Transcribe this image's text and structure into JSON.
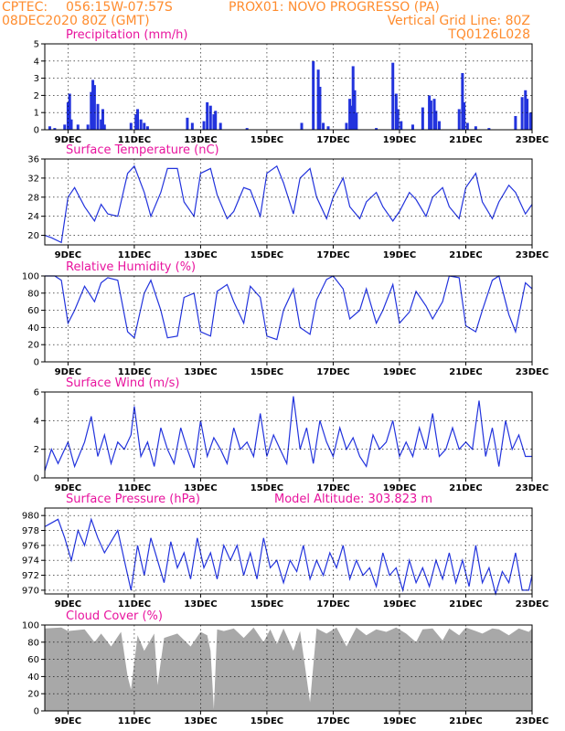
{
  "header": {
    "source": "CPTEC:",
    "location_coords": "056:15W-07:57S",
    "station": "PROX01: NOVO PROGRESSO (PA)",
    "run": "08DEC2020 80Z (GMT)",
    "grid_note": "Vertical Grid Line: 80Z",
    "model_code": "TQ0126L028"
  },
  "x_axis": {
    "ticks": [
      "9DEC",
      "11DEC",
      "13DEC",
      "15DEC",
      "17DEC",
      "19DEC",
      "21DEC",
      "23DEC"
    ],
    "tick_days": [
      9,
      11,
      13,
      15,
      17,
      19,
      21,
      23
    ],
    "range_days": [
      8.3,
      23
    ]
  },
  "colors": {
    "line": "#2233dd",
    "accent_title": "#e8149e",
    "header": "#ff8c2e",
    "cloud_fill": "#a8a8a8",
    "grid": "#000000"
  },
  "chart_data": [
    {
      "type": "bar",
      "title": "Precipitation (mm/h)",
      "ylim": [
        0,
        5
      ],
      "yticks": [
        "0",
        "1",
        "2",
        "3",
        "4",
        "5"
      ],
      "series": [
        {
          "x": [
            8.45,
            8.6,
            8.9,
            9.0,
            9.05,
            9.1,
            9.3,
            9.6,
            9.7,
            9.75,
            9.8,
            9.9,
            10.0,
            10.05,
            10.1,
            10.9,
            11.05,
            11.1,
            11.2,
            11.3,
            11.4,
            12.6,
            12.75,
            13.1,
            13.2,
            13.3,
            13.4,
            13.45,
            13.6,
            14.4,
            16.05,
            16.4,
            16.55,
            16.6,
            16.7,
            16.85,
            17.4,
            17.5,
            17.55,
            17.6,
            17.65,
            17.7,
            18.3,
            18.8,
            18.9,
            18.95,
            19.05,
            19.4,
            19.7,
            19.9,
            19.95,
            20.05,
            20.1,
            20.2,
            20.8,
            20.9,
            20.95,
            21.05,
            21.3,
            21.7,
            22.5,
            22.7,
            22.8,
            22.85,
            22.95
          ],
          "values": [
            0.2,
            0.1,
            0.3,
            1.6,
            2.1,
            0.6,
            0.3,
            0.3,
            2.2,
            2.9,
            2.6,
            1.5,
            0.6,
            1.2,
            0.3,
            0.4,
            0.9,
            1.2,
            0.6,
            0.4,
            0.2,
            0.7,
            0.4,
            0.5,
            1.6,
            1.4,
            0.9,
            1.1,
            0.4,
            0.1,
            0.4,
            4.0,
            3.5,
            2.5,
            0.4,
            0.2,
            0.4,
            1.8,
            1.4,
            3.7,
            2.3,
            1.0,
            0.1,
            3.9,
            2.1,
            1.2,
            0.5,
            0.3,
            1.3,
            2.0,
            1.7,
            1.8,
            1.1,
            0.5,
            1.2,
            3.3,
            1.6,
            0.4,
            0.2,
            0.1,
            0.8,
            1.9,
            2.3,
            1.8,
            1.0
          ]
        }
      ]
    },
    {
      "type": "line",
      "title": "Surface Temperature (nC)",
      "ylim": [
        18,
        36
      ],
      "yticks": [
        "20",
        "24",
        "28",
        "32",
        "36"
      ],
      "series": [
        {
          "x": [
            8.3,
            8.5,
            8.8,
            9.0,
            9.2,
            9.5,
            9.8,
            10.0,
            10.2,
            10.5,
            10.8,
            11.0,
            11.3,
            11.5,
            11.8,
            12.0,
            12.3,
            12.5,
            12.8,
            13.0,
            13.3,
            13.5,
            13.8,
            14.0,
            14.3,
            14.5,
            14.8,
            15.0,
            15.3,
            15.5,
            15.8,
            16.0,
            16.3,
            16.5,
            16.8,
            17.0,
            17.3,
            17.5,
            17.8,
            18.0,
            18.3,
            18.5,
            18.8,
            19.0,
            19.3,
            19.5,
            19.8,
            20.0,
            20.3,
            20.5,
            20.8,
            21.0,
            21.3,
            21.5,
            21.8,
            22.0,
            22.3,
            22.5,
            22.8,
            23.0
          ],
          "values": [
            20,
            19.5,
            18.5,
            28,
            30,
            26,
            23,
            26.5,
            24.5,
            24,
            33,
            34.5,
            29,
            24,
            29,
            34,
            34,
            27,
            24,
            33,
            34,
            28.5,
            23.5,
            25,
            30,
            29.5,
            24,
            33,
            34.5,
            31,
            24.5,
            32,
            34,
            28,
            23.5,
            28,
            32,
            26,
            23.5,
            27,
            29,
            26,
            23,
            25,
            29,
            27.5,
            24,
            28,
            30,
            26,
            23.5,
            30,
            33,
            27,
            23.5,
            27,
            30.5,
            29,
            24.5,
            26.5
          ]
        }
      ]
    },
    {
      "type": "line",
      "title": "Relative Humidity (%)",
      "ylim": [
        0,
        100
      ],
      "yticks": [
        "0",
        "20",
        "40",
        "60",
        "80",
        "100"
      ],
      "series": [
        {
          "x": [
            8.3,
            8.6,
            8.8,
            9.0,
            9.2,
            9.5,
            9.8,
            10.0,
            10.2,
            10.5,
            10.8,
            11.0,
            11.3,
            11.5,
            11.8,
            12.0,
            12.3,
            12.5,
            12.8,
            13.0,
            13.3,
            13.5,
            13.8,
            14.0,
            14.3,
            14.5,
            14.8,
            15.0,
            15.3,
            15.5,
            15.8,
            16.0,
            16.3,
            16.5,
            16.8,
            17.0,
            17.3,
            17.5,
            17.8,
            18.0,
            18.3,
            18.5,
            18.8,
            19.0,
            19.3,
            19.5,
            19.8,
            20.0,
            20.3,
            20.5,
            20.8,
            21.0,
            21.3,
            21.5,
            21.8,
            22.0,
            22.3,
            22.5,
            22.8,
            23.0
          ],
          "values": [
            100,
            100,
            95,
            45,
            60,
            88,
            70,
            92,
            98,
            95,
            35,
            28,
            80,
            95,
            60,
            28,
            30,
            75,
            80,
            35,
            30,
            82,
            90,
            70,
            45,
            88,
            75,
            30,
            26,
            60,
            85,
            40,
            32,
            72,
            96,
            100,
            85,
            50,
            60,
            85,
            45,
            60,
            90,
            45,
            58,
            82,
            65,
            50,
            70,
            100,
            98,
            42,
            35,
            60,
            95,
            100,
            55,
            35,
            92,
            85
          ]
        }
      ]
    },
    {
      "type": "line",
      "title": "Surface Wind (m/s)",
      "ylim": [
        0,
        6
      ],
      "yticks": [
        "0",
        "2",
        "4",
        "6"
      ],
      "series": [
        {
          "x": [
            8.3,
            8.5,
            8.7,
            9.0,
            9.2,
            9.5,
            9.7,
            9.9,
            10.1,
            10.3,
            10.5,
            10.7,
            10.9,
            11.0,
            11.2,
            11.4,
            11.6,
            11.8,
            12.0,
            12.2,
            12.4,
            12.6,
            12.8,
            13.0,
            13.2,
            13.4,
            13.6,
            13.8,
            14.0,
            14.2,
            14.4,
            14.6,
            14.8,
            15.0,
            15.2,
            15.4,
            15.6,
            15.8,
            16.0,
            16.2,
            16.4,
            16.6,
            16.8,
            17.0,
            17.2,
            17.4,
            17.6,
            17.8,
            18.0,
            18.2,
            18.4,
            18.6,
            18.8,
            19.0,
            19.2,
            19.4,
            19.6,
            19.8,
            20.0,
            20.2,
            20.4,
            20.6,
            20.8,
            21.0,
            21.2,
            21.4,
            21.6,
            21.8,
            22.0,
            22.2,
            22.4,
            22.6,
            22.8,
            23.0
          ],
          "values": [
            0.5,
            2.0,
            1.0,
            2.5,
            0.8,
            2.5,
            4.3,
            1.5,
            3.0,
            1.0,
            2.5,
            2.0,
            3.0,
            5.0,
            1.5,
            2.5,
            0.8,
            3.5,
            2.0,
            1.0,
            3.5,
            2.0,
            0.7,
            4.0,
            1.5,
            2.8,
            2.0,
            1.0,
            3.5,
            2.0,
            2.5,
            1.5,
            4.5,
            1.5,
            3.0,
            2.0,
            1.0,
            5.7,
            2.0,
            3.5,
            1.0,
            4.0,
            2.5,
            1.5,
            3.5,
            2.0,
            2.8,
            1.5,
            0.8,
            3.0,
            2.0,
            2.5,
            4.0,
            1.5,
            2.5,
            1.5,
            3.5,
            2.0,
            4.5,
            1.5,
            2.0,
            3.5,
            2.0,
            2.5,
            2.0,
            5.4,
            1.5,
            3.5,
            0.8,
            4.0,
            2.0,
            3.0,
            1.5,
            1.5
          ]
        }
      ]
    },
    {
      "type": "line",
      "title": "Surface Pressure (hPa)",
      "annotation": "Model Altitude: 303.823 m",
      "ylim": [
        969.5,
        981
      ],
      "yticks": [
        "970",
        "972",
        "974",
        "976",
        "978",
        "980"
      ],
      "series": [
        {
          "x": [
            8.3,
            8.5,
            8.7,
            8.9,
            9.1,
            9.3,
            9.5,
            9.7,
            9.9,
            10.1,
            10.3,
            10.5,
            10.7,
            10.9,
            11.1,
            11.3,
            11.5,
            11.7,
            11.9,
            12.1,
            12.3,
            12.5,
            12.7,
            12.9,
            13.1,
            13.3,
            13.5,
            13.7,
            13.9,
            14.1,
            14.3,
            14.5,
            14.7,
            14.9,
            15.1,
            15.3,
            15.5,
            15.7,
            15.9,
            16.1,
            16.3,
            16.5,
            16.7,
            16.9,
            17.1,
            17.3,
            17.5,
            17.7,
            17.9,
            18.1,
            18.3,
            18.5,
            18.7,
            18.9,
            19.1,
            19.3,
            19.5,
            19.7,
            19.9,
            20.1,
            20.3,
            20.5,
            20.7,
            20.9,
            21.1,
            21.3,
            21.5,
            21.7,
            21.9,
            22.1,
            22.3,
            22.5,
            22.7,
            22.9,
            23.0
          ],
          "values": [
            978.5,
            979,
            979.5,
            977,
            974,
            978,
            976,
            979.5,
            977,
            975,
            976.5,
            978,
            974,
            970,
            976,
            972,
            977,
            974,
            971,
            976.5,
            973,
            975,
            971.5,
            977,
            973,
            975,
            971.5,
            976,
            974,
            976,
            972,
            975,
            971.5,
            977,
            973,
            974,
            971,
            974,
            972.5,
            976,
            971.5,
            974,
            972,
            975,
            973,
            976,
            971.5,
            974,
            972,
            973,
            970.5,
            975,
            972,
            973,
            970,
            974,
            971,
            973,
            970.5,
            974,
            971.5,
            975,
            971,
            974,
            970.5,
            976,
            971,
            973,
            969.5,
            972.5,
            971,
            975,
            970,
            970,
            972
          ]
        }
      ]
    },
    {
      "type": "area",
      "title": "Cloud Cover (%)",
      "ylim": [
        0,
        100
      ],
      "yticks": [
        "0",
        "20",
        "40",
        "60",
        "80",
        "100"
      ],
      "series": [
        {
          "x": [
            8.3,
            8.8,
            9.0,
            9.5,
            9.8,
            10.0,
            10.3,
            10.6,
            10.8,
            10.9,
            11.1,
            11.3,
            11.6,
            11.7,
            11.9,
            12.3,
            12.7,
            13.0,
            13.2,
            13.3,
            13.4,
            13.5,
            13.7,
            14.0,
            14.3,
            14.6,
            14.9,
            15.1,
            15.3,
            15.5,
            15.8,
            16.0,
            16.3,
            16.5,
            16.8,
            17.1,
            17.4,
            17.7,
            18.0,
            18.3,
            18.6,
            18.9,
            19.2,
            19.5,
            19.7,
            20.0,
            20.3,
            20.5,
            20.8,
            21.0,
            21.3,
            21.5,
            21.8,
            22.0,
            22.3,
            22.6,
            22.9,
            23.0
          ],
          "values": [
            96,
            97,
            93,
            95,
            80,
            90,
            75,
            92,
            40,
            25,
            88,
            70,
            90,
            30,
            85,
            90,
            75,
            92,
            88,
            70,
            2,
            95,
            93,
            96,
            85,
            97,
            80,
            95,
            78,
            96,
            70,
            93,
            10,
            96,
            90,
            97,
            75,
            97,
            88,
            95,
            92,
            97,
            90,
            80,
            95,
            96,
            82,
            96,
            88,
            97,
            93,
            90,
            96,
            95,
            88,
            96,
            92,
            96
          ]
        }
      ]
    }
  ]
}
